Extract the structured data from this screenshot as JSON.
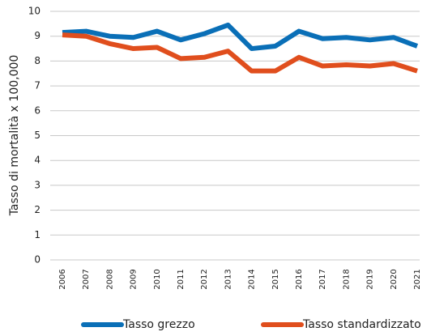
{
  "chart_data": {
    "type": "line",
    "y_label": "Tasso di mortalità x 100,000",
    "categories": [
      "2006",
      "2007",
      "2008",
      "2009",
      "2010",
      "2011",
      "2012",
      "2013",
      "2014",
      "2015",
      "2016",
      "2017",
      "2018",
      "2019",
      "2020",
      "2021"
    ],
    "series": [
      {
        "name": "Tasso grezzo",
        "color": "#0a6fb7",
        "values": [
          9.15,
          9.2,
          9.0,
          8.95,
          9.2,
          8.85,
          9.1,
          9.45,
          8.5,
          8.6,
          9.2,
          8.9,
          8.95,
          8.85,
          8.95,
          8.6
        ]
      },
      {
        "name": "Tasso standardizzato",
        "color": "#e04e1d",
        "values": [
          9.05,
          9.0,
          8.7,
          8.5,
          8.55,
          8.1,
          8.15,
          8.4,
          7.6,
          7.6,
          8.15,
          7.8,
          7.85,
          7.8,
          7.9,
          7.6
        ]
      }
    ],
    "ylim": [
      0,
      10
    ],
    "yticks": [
      0,
      1,
      2,
      3,
      4,
      5,
      6,
      7,
      8,
      9,
      10
    ],
    "grid": true,
    "legend": "bottom"
  }
}
